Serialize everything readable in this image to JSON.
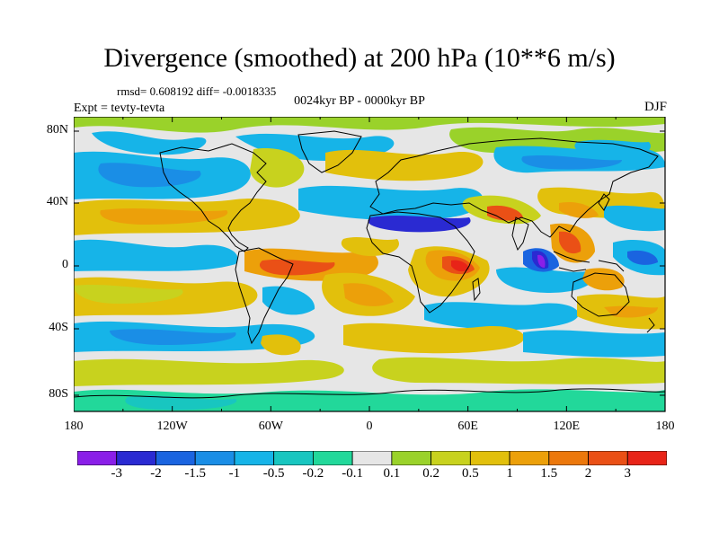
{
  "title": "Divergence (smoothed) at 200 hPa (10**6 m/s)",
  "stats": "rmsd= 0.608192 diff= -0.0018335",
  "subtitle": "0024kyr BP - 0000kyr BP",
  "expt": "Expt = tevty-tevta",
  "season": "DJF",
  "lon_ticks": [
    "180",
    "120W",
    "60W",
    "0",
    "60E",
    "120E",
    "180"
  ],
  "lat_ticks": [
    "80N",
    "40N",
    "0",
    "40S",
    "80S"
  ],
  "colorbar": {
    "labels": [
      "-3",
      "-2",
      "-1.5",
      "-1",
      "-0.5",
      "-0.2",
      "-0.1",
      "0.1",
      "0.2",
      "0.5",
      "1",
      "1.5",
      "2",
      "3"
    ],
    "colors": [
      "#8a1fe8",
      "#2a2ad2",
      "#1a64e0",
      "#1a8ee6",
      "#16b4e8",
      "#18c6c0",
      "#22d89a",
      "#e6e6e6",
      "#9ad22a",
      "#c8d21e",
      "#e2c00c",
      "#eca00a",
      "#ec780c",
      "#ea5016",
      "#e82418"
    ]
  }
}
